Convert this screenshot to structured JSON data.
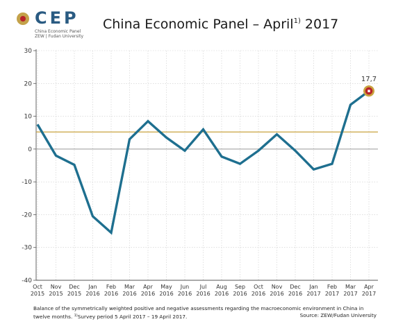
{
  "logo": {
    "wordmark": "CEP",
    "sub_line1": "China Economic Panel",
    "sub_line2": "ZEW | Fudan University"
  },
  "title": {
    "main": "China Economic Panel – April",
    "superscript": "1)",
    "year": " 2017"
  },
  "caption": {
    "line1": "Balance of the symmetrically weighted positive and negative assessments regarding the macroeconomic environment in China in",
    "line2_prefix": "twelve months. ",
    "line2_sup": "1)",
    "line2_rest": "Survey period 5 April 2017 – 19 April 2017.",
    "source": "Source: ZEW/Fudan University"
  },
  "colors": {
    "series": "#1e6f8f",
    "reference": "#c9a23e",
    "zero": "#999999",
    "grid": "#cccccc",
    "marker_fill": "#b8232a",
    "marker_ring": "#c9a23e"
  },
  "chart_data": {
    "type": "line",
    "title": "China Economic Panel – April 2017",
    "xlabel": "",
    "ylabel": "",
    "ylim": [
      -40,
      30
    ],
    "yticks": [
      "30",
      "20",
      "10",
      "0",
      "-10",
      "-20",
      "-30",
      "-40"
    ],
    "ytick_values": [
      30,
      20,
      10,
      0,
      -10,
      -20,
      -30,
      -40
    ],
    "categories": [
      [
        "Oct",
        "2015"
      ],
      [
        "Nov",
        "2015"
      ],
      [
        "Dec",
        "2015"
      ],
      [
        "Jan",
        "2016"
      ],
      [
        "Feb",
        "2016"
      ],
      [
        "Mar",
        "2016"
      ],
      [
        "Apr",
        "2016"
      ],
      [
        "May",
        "2016"
      ],
      [
        "Jun",
        "2016"
      ],
      [
        "Jul",
        "2016"
      ],
      [
        "Aug",
        "2016"
      ],
      [
        "Sep",
        "2016"
      ],
      [
        "Oct",
        "2016"
      ],
      [
        "Nov",
        "2016"
      ],
      [
        "Dec",
        "2016"
      ],
      [
        "Jan",
        "2017"
      ],
      [
        "Feb",
        "2017"
      ],
      [
        "Mar",
        "2017"
      ],
      [
        "Apr",
        "2017"
      ]
    ],
    "series": [
      {
        "values": [
          7.5,
          -2.0,
          -4.8,
          -20.5,
          -25.5,
          3.0,
          8.5,
          3.5,
          -0.5,
          6.0,
          -2.3,
          -4.5,
          -0.5,
          4.5,
          -0.5,
          -6.2,
          -4.5,
          13.5,
          17.7
        ]
      }
    ],
    "reference_line": 5.2,
    "zero_line": 0,
    "grid": "horizontal",
    "annotation": {
      "index": 18,
      "label": "17,7"
    }
  }
}
